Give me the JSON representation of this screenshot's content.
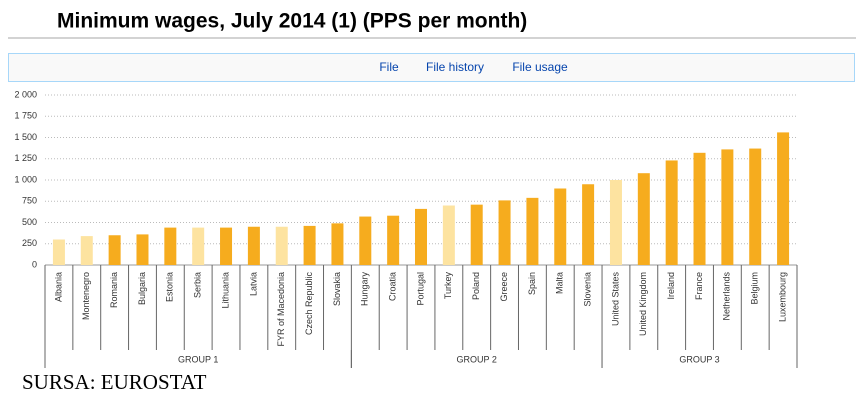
{
  "chart_data": {
    "type": "bar",
    "title": "Minimum wages, July 2014 (1) (PPS per month)",
    "tabs": [
      "File",
      "File history",
      "File usage"
    ],
    "source": "SURSA: EUROSTAT",
    "categories": [
      "Albania",
      "Montenegro",
      "Romania",
      "Bulgaria",
      "Estonia",
      "Serbia",
      "Lithuania",
      "Latvia",
      "FYR of Macedonia",
      "Czech Republic",
      "Slovakia",
      "Hungary",
      "Croatia",
      "Portugal",
      "Turkey",
      "Poland",
      "Greece",
      "Spain",
      "Malta",
      "Slovenia",
      "United States",
      "United Kingdom",
      "Ireland",
      "France",
      "Netherlands",
      "Belgium",
      "Luxembourg"
    ],
    "values": [
      300,
      340,
      350,
      360,
      440,
      440,
      440,
      450,
      450,
      460,
      490,
      570,
      580,
      660,
      700,
      710,
      760,
      790,
      900,
      950,
      1000,
      1080,
      1230,
      1320,
      1360,
      1370,
      1560
    ],
    "colors": [
      "#fde3a0",
      "#fde3a0",
      "#f6ac1e",
      "#f6ac1e",
      "#f6ac1e",
      "#fde3a0",
      "#f6ac1e",
      "#f6ac1e",
      "#fde3a0",
      "#f6ac1e",
      "#f6ac1e",
      "#f6ac1e",
      "#f6ac1e",
      "#f6ac1e",
      "#fde3a0",
      "#f6ac1e",
      "#f6ac1e",
      "#f6ac1e",
      "#f6ac1e",
      "#f6ac1e",
      "#fde3a0",
      "#f6ac1e",
      "#f6ac1e",
      "#f6ac1e",
      "#f6ac1e",
      "#f6ac1e",
      "#f6ac1e"
    ],
    "groups": [
      {
        "label": "GROUP 1",
        "size": 11
      },
      {
        "label": "GROUP 2",
        "size": 9
      },
      {
        "label": "GROUP 3",
        "size": 7
      }
    ],
    "ylim": [
      0,
      2000
    ],
    "yticks": [
      0,
      250,
      500,
      750,
      {
        "value": 1000,
        "label": "1 000"
      },
      {
        "value": 1250,
        "label": "1 250"
      },
      {
        "value": 1500,
        "label": "1 500"
      },
      {
        "value": 1750,
        "label": "1 750"
      },
      {
        "value": 2000,
        "label": "2 000"
      }
    ],
    "grid": true
  }
}
